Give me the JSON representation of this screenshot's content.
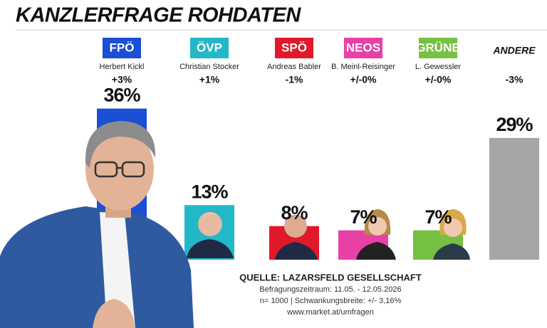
{
  "chart_data": {
    "type": "bar",
    "title": "KANZLERFRAGE ROHDATEN",
    "categories": [
      "FPÖ",
      "ÖVP",
      "SPÖ",
      "NEOS",
      "GRÜNE",
      "ANDERE"
    ],
    "candidates": [
      "Herbert Kickl",
      "Christian Stocker",
      "Andreas Babler",
      "B. Meinl-Reisinger",
      "L. Gewessler",
      null
    ],
    "changes": [
      "+3%",
      "+1%",
      "-1%",
      "+/-0%",
      "+/-0%",
      "-3%"
    ],
    "values": [
      36,
      13,
      8,
      7,
      7,
      29
    ],
    "value_labels": [
      "36%",
      "13%",
      "8%",
      "7%",
      "7%",
      "29%"
    ],
    "colors": [
      "#1a4fd6",
      "#22b8c8",
      "#e0192a",
      "#e940a8",
      "#76c043",
      "#a6a6a6"
    ],
    "source": {
      "title": "QUELLE: LAZARSFELD GESELLSCHAFT",
      "lines": [
        "Befragungszeitraum: 11.05. - 12.05.2026",
        "n= 1000 | Schwankungsbreite: +/- 3,16%",
        "www.market.at/umfragen"
      ]
    }
  }
}
